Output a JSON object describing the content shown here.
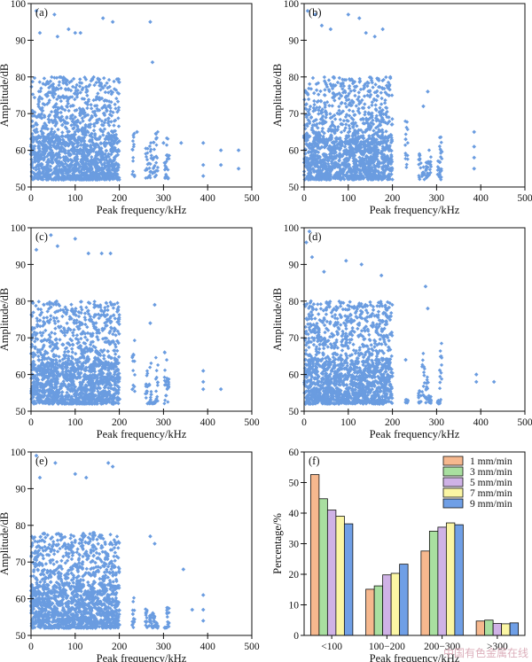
{
  "watermark": "中国有色金属在线",
  "chart_data": [
    {
      "type": "scatter",
      "panel": "(a)",
      "xlabel": "Peak frequency/kHz",
      "ylabel": "Amplitude/dB",
      "xlim": [
        0,
        500
      ],
      "ylim": [
        50,
        100
      ],
      "xticks": [
        0,
        100,
        200,
        300,
        400,
        500
      ],
      "yticks": [
        50,
        60,
        70,
        80,
        90,
        100
      ],
      "color": "#6a9ce0",
      "clusters": [
        {
          "x": [
            0,
            200
          ],
          "y": [
            52,
            80
          ],
          "density": "dense"
        },
        {
          "x": [
            225,
            315
          ],
          "y": [
            52,
            75
          ],
          "density": "columns"
        }
      ],
      "points": [
        [
          12,
          98
        ],
        [
          20,
          92
        ],
        [
          53,
          97
        ],
        [
          60,
          91
        ],
        [
          85,
          93
        ],
        [
          100,
          92
        ],
        [
          112,
          92
        ],
        [
          163,
          96
        ],
        [
          185,
          95
        ],
        [
          270,
          95
        ],
        [
          275,
          84
        ],
        [
          240,
          65
        ],
        [
          300,
          62
        ],
        [
          340,
          62
        ],
        [
          390,
          62
        ],
        [
          390,
          56
        ],
        [
          390,
          53
        ],
        [
          430,
          60
        ],
        [
          430,
          56
        ],
        [
          470,
          60
        ],
        [
          470,
          55
        ]
      ]
    },
    {
      "type": "scatter",
      "panel": "(b)",
      "xlabel": "Peak frequency/kHz",
      "ylabel": "Amplitude/dB",
      "xlim": [
        0,
        500
      ],
      "ylim": [
        50,
        100
      ],
      "xticks": [
        0,
        100,
        200,
        300,
        400,
        500
      ],
      "yticks": [
        50,
        60,
        70,
        80,
        90,
        100
      ],
      "color": "#6a9ce0",
      "clusters": [
        {
          "x": [
            0,
            200
          ],
          "y": [
            52,
            80
          ],
          "density": "dense"
        },
        {
          "x": [
            225,
            315
          ],
          "y": [
            52,
            72
          ],
          "density": "columns"
        }
      ],
      "points": [
        [
          8,
          98
        ],
        [
          25,
          97
        ],
        [
          40,
          94
        ],
        [
          60,
          93
        ],
        [
          100,
          97
        ],
        [
          125,
          96
        ],
        [
          140,
          92
        ],
        [
          160,
          91
        ],
        [
          178,
          93
        ],
        [
          280,
          76
        ],
        [
          270,
          72
        ],
        [
          230,
          63
        ],
        [
          385,
          65
        ],
        [
          385,
          61
        ],
        [
          385,
          58
        ],
        [
          385,
          55
        ]
      ]
    },
    {
      "type": "scatter",
      "panel": "(c)",
      "xlabel": "Peak frequency/kHz",
      "ylabel": "Amplitude/dB",
      "xlim": [
        0,
        500
      ],
      "ylim": [
        50,
        100
      ],
      "xticks": [
        0,
        100,
        200,
        300,
        400,
        500
      ],
      "yticks": [
        50,
        60,
        70,
        80,
        90,
        100
      ],
      "color": "#6a9ce0",
      "clusters": [
        {
          "x": [
            0,
            200
          ],
          "y": [
            52,
            80
          ],
          "density": "dense"
        },
        {
          "x": [
            225,
            315
          ],
          "y": [
            52,
            70
          ],
          "density": "columns"
        }
      ],
      "points": [
        [
          12,
          94
        ],
        [
          45,
          98
        ],
        [
          60,
          95
        ],
        [
          100,
          97
        ],
        [
          130,
          93
        ],
        [
          160,
          93
        ],
        [
          180,
          93
        ],
        [
          280,
          79
        ],
        [
          270,
          74
        ],
        [
          230,
          65
        ],
        [
          390,
          61
        ],
        [
          390,
          58
        ],
        [
          390,
          56
        ],
        [
          430,
          56
        ]
      ]
    },
    {
      "type": "scatter",
      "panel": "(d)",
      "xlabel": "Peak frequency/kHz",
      "ylabel": "Amplitude/dB",
      "xlim": [
        0,
        500
      ],
      "ylim": [
        50,
        100
      ],
      "xticks": [
        0,
        100,
        200,
        300,
        400,
        500
      ],
      "yticks": [
        50,
        60,
        70,
        80,
        90,
        100
      ],
      "color": "#6a9ce0",
      "clusters": [
        {
          "x": [
            0,
            200
          ],
          "y": [
            52,
            80
          ],
          "density": "dense"
        },
        {
          "x": [
            225,
            315
          ],
          "y": [
            52,
            72
          ],
          "density": "columns"
        }
      ],
      "points": [
        [
          5,
          96
        ],
        [
          12,
          99
        ],
        [
          18,
          92
        ],
        [
          45,
          88
        ],
        [
          95,
          91
        ],
        [
          130,
          90
        ],
        [
          175,
          87
        ],
        [
          275,
          84
        ],
        [
          280,
          78
        ],
        [
          230,
          64
        ],
        [
          390,
          60
        ],
        [
          390,
          58
        ],
        [
          430,
          58
        ]
      ]
    },
    {
      "type": "scatter",
      "panel": "(e)",
      "xlabel": "Peak frequency/kHz",
      "ylabel": "Amplitude/dB",
      "xlim": [
        0,
        500
      ],
      "ylim": [
        50,
        100
      ],
      "xticks": [
        0,
        100,
        200,
        300,
        400,
        500
      ],
      "yticks": [
        50,
        60,
        70,
        80,
        90,
        100
      ],
      "color": "#6a9ce0",
      "clusters": [
        {
          "x": [
            0,
            200
          ],
          "y": [
            52,
            78
          ],
          "density": "dense"
        },
        {
          "x": [
            225,
            315
          ],
          "y": [
            52,
            70
          ],
          "density": "columns"
        }
      ],
      "points": [
        [
          12,
          99
        ],
        [
          20,
          93
        ],
        [
          55,
          97
        ],
        [
          100,
          94
        ],
        [
          125,
          93
        ],
        [
          175,
          97
        ],
        [
          185,
          96
        ],
        [
          270,
          77
        ],
        [
          280,
          75
        ],
        [
          345,
          68
        ],
        [
          365,
          57
        ],
        [
          390,
          61
        ],
        [
          390,
          57
        ],
        [
          390,
          54
        ]
      ]
    },
    {
      "type": "bar",
      "panel": "(f)",
      "xlabel": "Peak frequency/kHz",
      "ylabel": "Percentage/%",
      "ylim": [
        0,
        60
      ],
      "yticks": [
        0,
        10,
        20,
        30,
        40,
        50,
        60
      ],
      "categories": [
        "<100",
        "100−200",
        "200−300",
        ">300"
      ],
      "legend_position": "top-right",
      "series": [
        {
          "name": "1 mm/min",
          "color": "#f6b88e",
          "values": [
            52.6,
            15.1,
            27.6,
            4.7
          ]
        },
        {
          "name": "3 mm/min",
          "color": "#a9dfa0",
          "values": [
            44.7,
            16.2,
            34.1,
            5.0
          ]
        },
        {
          "name": "5 mm/min",
          "color": "#cfb2e6",
          "values": [
            41.0,
            19.8,
            35.4,
            3.9
          ]
        },
        {
          "name": "7 mm/min",
          "color": "#fbf6a4",
          "values": [
            39.0,
            20.3,
            36.8,
            3.8
          ]
        },
        {
          "name": "9 mm/min",
          "color": "#6f9fe6",
          "values": [
            36.5,
            23.3,
            36.2,
            4.1
          ]
        }
      ]
    }
  ]
}
